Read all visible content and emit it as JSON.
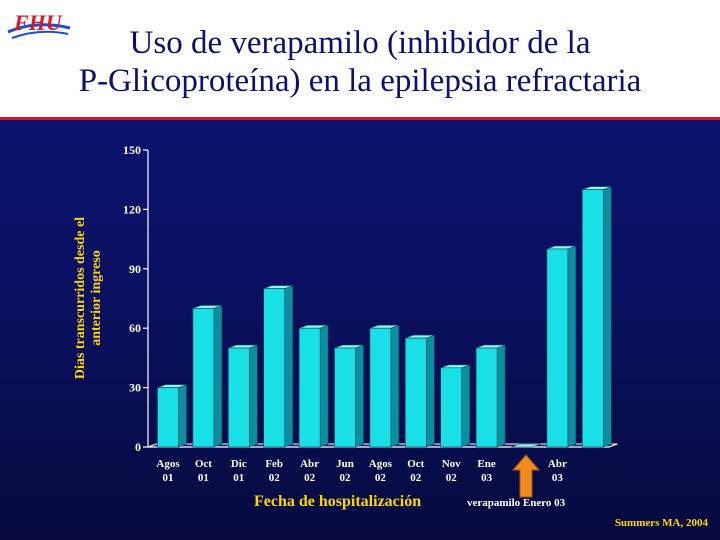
{
  "logo": {
    "text": "FHU",
    "icon": "fhu-logo-icon",
    "colors": {
      "letters": "#d11a2a",
      "swoosh": "#1a4fd1"
    }
  },
  "title": {
    "line1": "Uso de verapamilo (inhibidor de la",
    "line2": "P-Glicoproteína) en la epilepsia refractaria"
  },
  "chart_data": {
    "type": "bar",
    "ylabel_line1": "Dias transcurridos desde el",
    "ylabel_line2": "anterior ingreso",
    "xlabel": "Fecha de hospitalización",
    "ylim": [
      0,
      150
    ],
    "yticks": [
      "0",
      "30",
      "60",
      "90",
      "120",
      "150"
    ],
    "grid": false,
    "categories": [
      [
        "Agos",
        "01"
      ],
      [
        "Oct",
        "01"
      ],
      [
        "Dic",
        "01"
      ],
      [
        "Feb",
        "02"
      ],
      [
        "Abr",
        "02"
      ],
      [
        "Jun",
        "02"
      ],
      [
        "Agos",
        "02"
      ],
      [
        "Oct",
        "02"
      ],
      [
        "Nov",
        "02"
      ],
      [
        "Ene",
        "03"
      ],
      [
        "",
        ""
      ],
      [
        "Abr",
        "03"
      ],
      [
        "",
        ""
      ]
    ],
    "values": [
      30,
      70,
      50,
      80,
      60,
      50,
      60,
      55,
      40,
      50,
      0,
      100,
      130
    ],
    "colors": {
      "bar_front": "#19e0e6",
      "bar_side": "#0b8fa0",
      "bar_top": "#8ff6f8",
      "axis": "#ffffff",
      "tick_text": "#ffffff"
    }
  },
  "annotation": {
    "text": "verapamilo Enero 03",
    "arrow_icon": "up-arrow-icon",
    "arrow_color": "#f08a1c"
  },
  "source": "Summers MA, 2004"
}
